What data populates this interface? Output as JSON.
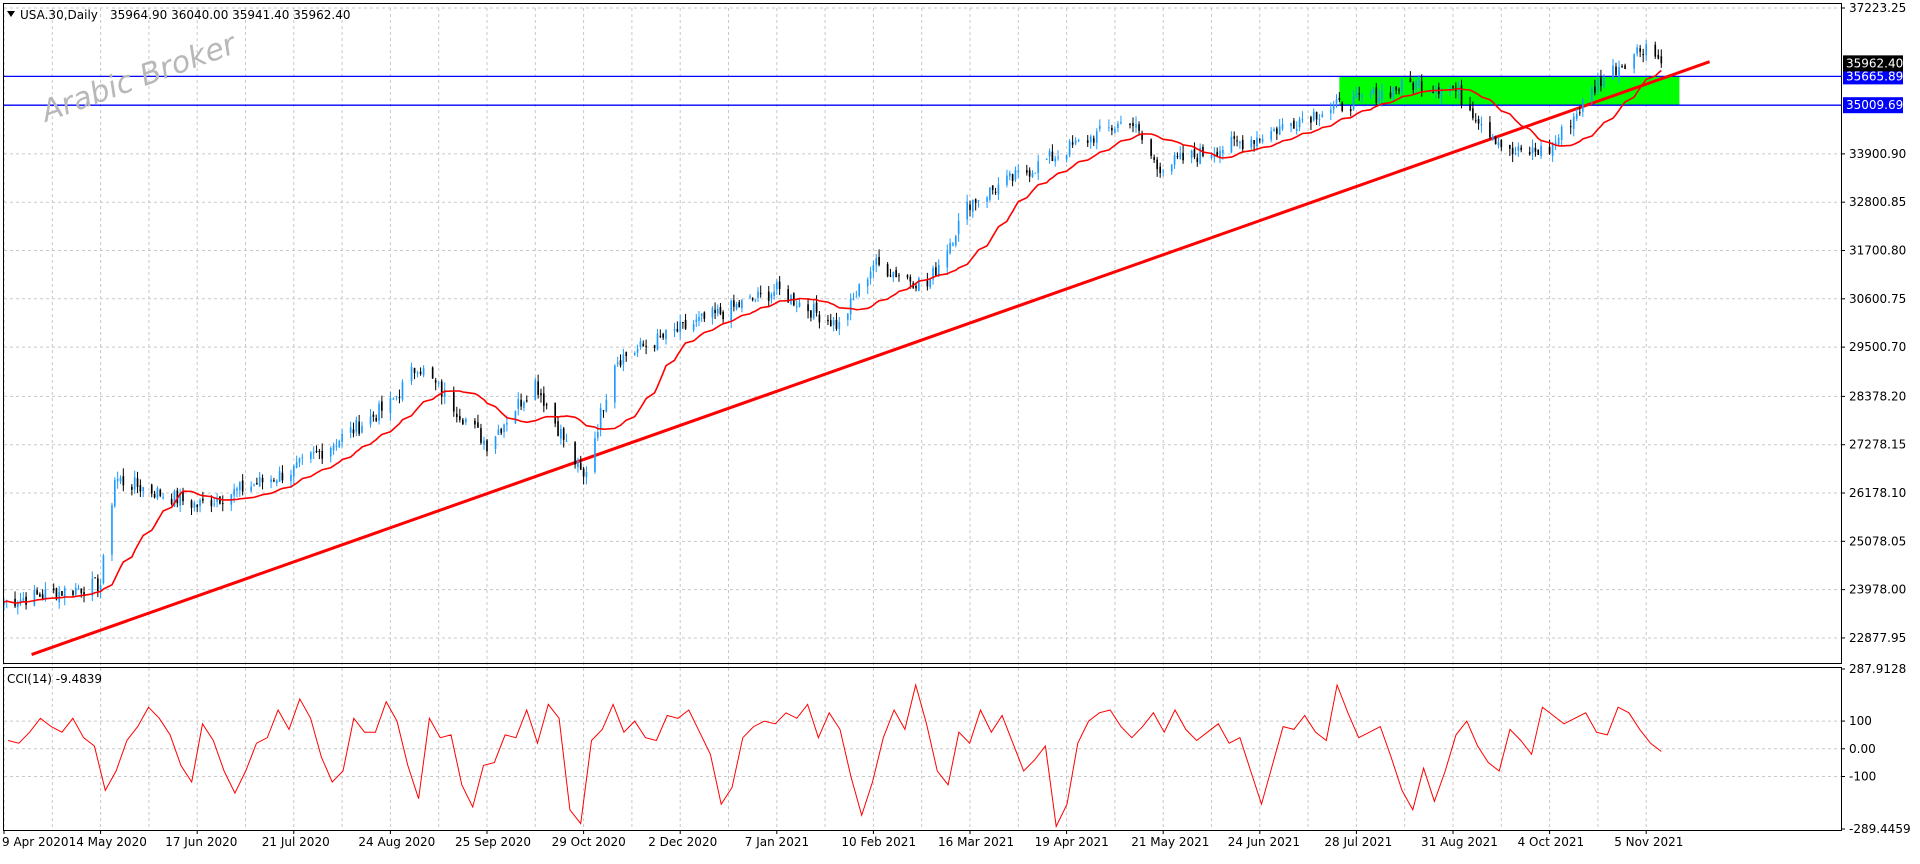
{
  "header": {
    "symbol": "USA.30,Daily",
    "ohlc": "35964.90 36040.00 35941.40 35962.40"
  },
  "watermark": "Arabic Broker",
  "indicator_label": "CCI(14) -9.4839",
  "colors": {
    "bull": "#1e9bff",
    "bear": "#000000",
    "ma": "#ff0000",
    "trendline": "#ff0000",
    "hline": "#0000ff",
    "zone": "#00ff00",
    "grid": "#c8c8c8",
    "cci": "#ff0000",
    "current_price_bg": "#000000"
  },
  "chart_data": [
    {
      "type": "candlestick",
      "symbol": "USA.30",
      "timeframe": "Daily",
      "ylim": [
        22330,
        37223.25
      ],
      "y_ticks": [
        "37223.25",
        "33900.90",
        "32800.85",
        "31700.80",
        "30600.75",
        "29500.70",
        "28378.20",
        "27278.15",
        "26178.10",
        "25078.05",
        "23978.00",
        "22877.95"
      ],
      "x_ticks": [
        "9 Apr 2020",
        "14 May 2020",
        "17 Jun 2020",
        "21 Jul 2020",
        "24 Aug 2020",
        "25 Sep 2020",
        "29 Oct 2020",
        "2 Dec 2020",
        "7 Jan 2021",
        "10 Feb 2021",
        "16 Mar 2021",
        "19 Apr 2021",
        "21 May 2021",
        "24 Jun 2021",
        "28 Jul 2021",
        "31 Aug 2021",
        "4 Oct 2021",
        "5 Nov 2021"
      ],
      "close_path": [
        [
          "9 Apr 2020",
          23700
        ],
        [
          "14 May 2020",
          24100
        ],
        [
          "19 May 2020",
          26500
        ],
        [
          "17 Jun 2020",
          25900
        ],
        [
          "21 Jul 2020",
          26700
        ],
        [
          "24 Aug 2020",
          28200
        ],
        [
          "2 Sep 2020",
          29100
        ],
        [
          "25 Sep 2020",
          27300
        ],
        [
          "12 Oct 2020",
          28700
        ],
        [
          "29 Oct 2020",
          26500
        ],
        [
          "9 Nov 2020",
          29200
        ],
        [
          "2 Dec 2020",
          29900
        ],
        [
          "7 Jan 2021",
          30800
        ],
        [
          "29 Jan 2021",
          29982
        ],
        [
          "10 Feb 2021",
          31400
        ],
        [
          "1 Mar 2021",
          30900
        ],
        [
          "16 Mar 2021",
          32800
        ],
        [
          "19 Apr 2021",
          34000
        ],
        [
          "10 May 2021",
          34700
        ],
        [
          "19 May 2021",
          33600
        ],
        [
          "24 Jun 2021",
          34300
        ],
        [
          "12 Jul 2021",
          34800
        ],
        [
          "28 Jul 2021",
          35100
        ],
        [
          "16 Aug 2021",
          35500
        ],
        [
          "31 Aug 2021",
          35400
        ],
        [
          "20 Sep 2021",
          33900
        ],
        [
          "4 Oct 2021",
          34000
        ],
        [
          "21 Oct 2021",
          35600
        ],
        [
          "5 Nov 2021",
          36400
        ],
        [
          "10 Nov 2021",
          35962.4
        ]
      ],
      "moving_average": {
        "color": "#ff0000"
      },
      "horizontal_lines": [
        {
          "price": 35665.89,
          "label": "35665.89"
        },
        {
          "price": 35009.69,
          "label": "35009.69"
        }
      ],
      "zone": {
        "from": "22 Jul 2021",
        "to": "16 Nov 2021",
        "low": 35009.69,
        "high": 35665.89
      },
      "trendline": [
        [
          "19 Apr 2020",
          22500
        ],
        [
          "26 Nov 2021",
          36000
        ]
      ],
      "current_price": {
        "value": 35962.4,
        "label": "35962.40"
      }
    },
    {
      "type": "line",
      "name": "CCI(14)",
      "last_value": -9.4839,
      "ylim": [
        -289.4459,
        287.9128
      ],
      "y_ticks": [
        "287.9128",
        "100",
        "0.00",
        "-100",
        "-289.4459"
      ],
      "values_pattern": [
        30,
        20,
        60,
        110,
        80,
        60,
        110,
        40,
        10,
        -150,
        -80,
        30,
        80,
        150,
        110,
        50,
        -60,
        -120,
        90,
        30,
        -80,
        -160,
        -80,
        20,
        40,
        140,
        70,
        180,
        110,
        -30,
        -120,
        -80,
        110,
        60,
        60,
        170,
        100,
        -60,
        -180,
        110,
        40,
        50,
        -130,
        -210,
        -60,
        -50,
        50,
        40,
        140,
        20,
        160,
        110,
        -220,
        -270,
        30,
        70,
        160,
        60,
        100,
        40,
        30,
        120,
        110,
        140,
        60,
        -20,
        -200,
        -140,
        40,
        80,
        100,
        90,
        130,
        110,
        160,
        40,
        130,
        70,
        -100,
        -240,
        -120,
        40,
        140,
        70,
        230,
        90,
        -80,
        -130,
        60,
        20,
        140,
        60,
        120,
        20,
        -80,
        -40,
        10,
        -280,
        -200,
        20,
        100,
        130,
        140,
        80,
        40,
        80,
        130,
        60,
        140,
        70,
        30,
        60,
        90,
        20,
        40,
        -80,
        -200,
        -60,
        80,
        70,
        120,
        60,
        30,
        230,
        130,
        40,
        60,
        80,
        -30,
        -150,
        -220,
        -70,
        -190,
        -80,
        50,
        100,
        10,
        -50,
        -80,
        70,
        30,
        -20,
        150,
        120,
        90,
        110,
        130,
        60,
        50,
        150,
        130,
        70,
        20,
        -9.4839
      ]
    }
  ]
}
